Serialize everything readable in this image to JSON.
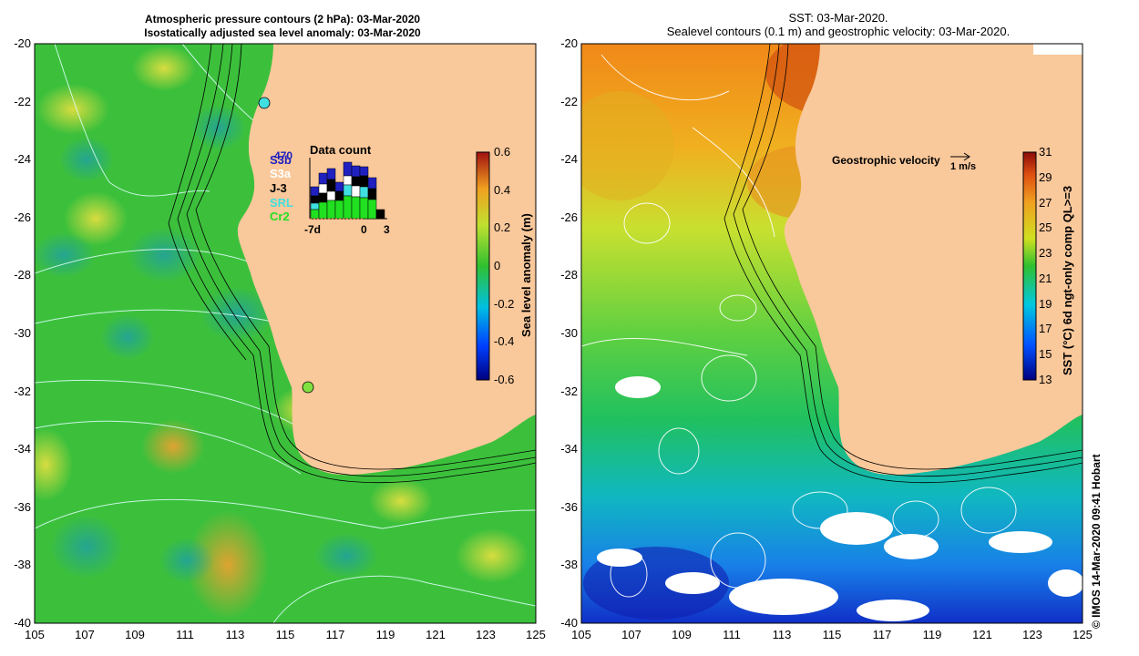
{
  "left_panel": {
    "title_line1": "Atmospheric pressure contours (2 hPa): 03-Mar-2020",
    "title_line2": "Isostatically adjusted sea level anomaly: 03-Mar-2020",
    "colorbar": {
      "label": "Sea level anomaly (m)",
      "ticks": [
        "0.6",
        "0.4",
        "0.2",
        "0",
        "-0.2",
        "-0.4",
        "-0.6"
      ]
    },
    "inset": {
      "title": "Data count",
      "max_count": "470",
      "satellites": [
        {
          "name": "S3b",
          "color": "#2020c0"
        },
        {
          "name": "S3a",
          "color": "#ffffff"
        },
        {
          "name": "J-3",
          "color": "#000000"
        },
        {
          "name": "SRL",
          "color": "#40e0e0"
        },
        {
          "name": "Cr2",
          "color": "#20e020"
        }
      ],
      "x_ticks": [
        "-7d",
        "0",
        "3"
      ]
    }
  },
  "right_panel": {
    "title_line1": "SST: 03-Mar-2020.",
    "title_line2": "Sealevel contours (0.1 m) and geostrophic velocity: 03-Mar-2020.",
    "colorbar": {
      "label": "SST (°C) 6d ngt-only comp QL>=3",
      "ticks": [
        "31",
        "29",
        "27",
        "25",
        "23",
        "21",
        "19",
        "17",
        "15",
        "13"
      ]
    },
    "legend_label": "Geostrophic velocity",
    "legend_unit": "1 m/s"
  },
  "axes": {
    "lat_ticks": [
      "-20",
      "-22",
      "-24",
      "-26",
      "-28",
      "-30",
      "-32",
      "-34",
      "-36",
      "-38",
      "-40"
    ],
    "lon_ticks": [
      "105",
      "107",
      "109",
      "111",
      "113",
      "115",
      "117",
      "119",
      "121",
      "123",
      "125"
    ]
  },
  "colors": {
    "land": "#f9c89b",
    "sla_mid": "#3cc03c",
    "sst_warm": "#e8a020",
    "sst_cool": "#2070e0"
  },
  "copyright": "© IMOS 14-Mar-2020 09:41 Hobart"
}
